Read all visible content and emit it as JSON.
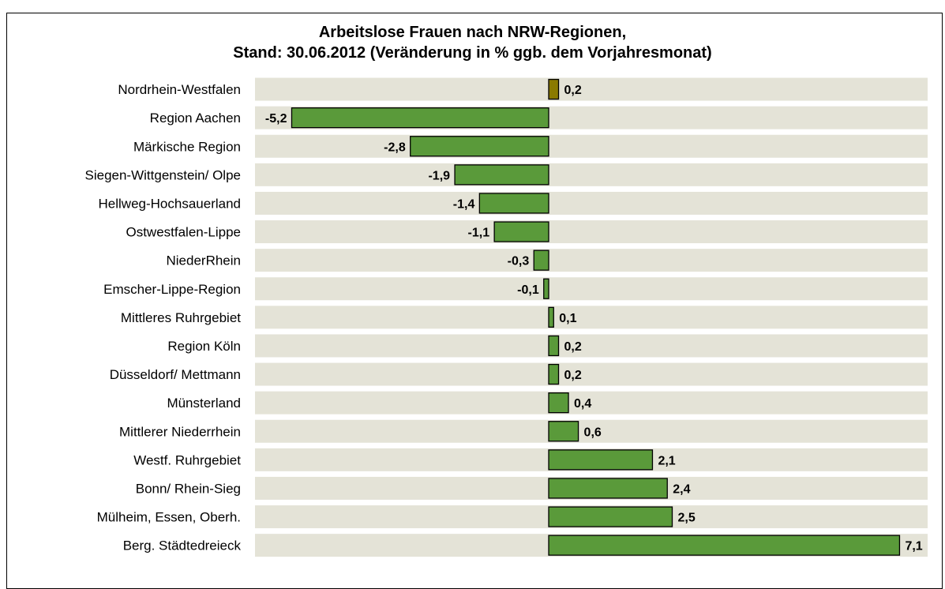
{
  "chart_data": {
    "type": "bar",
    "orientation": "horizontal",
    "title_line1": "Arbeitslose Frauen nach NRW-Regionen,",
    "title_line2": "Stand: 30.06.2012 (Veränderung in % ggb. dem Vorjahresmonat)",
    "xlabel": "",
    "ylabel": "",
    "xlim": [
      -5.8,
      7.8
    ],
    "grid": false,
    "legend": "none",
    "categories": [
      "Nordrhein-Westfalen",
      "Region Aachen",
      "Märkische Region",
      "Siegen-Wittgenstein/ Olpe",
      "Hellweg-Hochsauerland",
      "Ostwestfalen-Lippe",
      "NiederRhein",
      "Emscher-Lippe-Region",
      "Mittleres Ruhrgebiet",
      "Region Köln",
      "Düsseldorf/ Mettmann",
      "Münsterland",
      "Mittlerer Niederrhein",
      "Westf. Ruhrgebiet",
      "Bonn/ Rhein-Sieg",
      "Mülheim, Essen, Oberh.",
      "Berg. Städtedreieck"
    ],
    "values": [
      0.2,
      -5.2,
      -2.8,
      -1.9,
      -1.4,
      -1.1,
      -0.3,
      -0.1,
      0.1,
      0.2,
      0.2,
      0.4,
      0.6,
      2.1,
      2.4,
      2.5,
      7.1
    ],
    "value_labels": [
      "0,2",
      "-5,2",
      "-2,8",
      "-1,9",
      "-1,4",
      "-1,1",
      "-0,3",
      "-0,1",
      "0,1",
      "0,2",
      "0,2",
      "0,4",
      "0,6",
      "2,1",
      "2,4",
      "2,5",
      "7,1"
    ],
    "colors": {
      "highlight": "#8a7a00",
      "bar": "#5a9a3a",
      "band": "#e4e3d7",
      "outline": "#000000"
    },
    "highlight_index": 0
  }
}
